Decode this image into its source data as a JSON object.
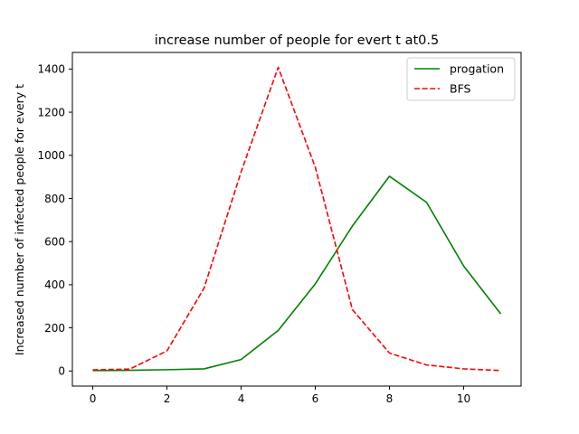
{
  "chart_data": {
    "type": "line",
    "title": "increase number of people for evert t  at0.5",
    "xlabel": "",
    "ylabel": "Increased number of infected people for every t",
    "xlim": [
      -0.55,
      11.55
    ],
    "ylim": [
      -70,
      1477
    ],
    "xticks": [
      0,
      2,
      4,
      6,
      8,
      10
    ],
    "yticks": [
      0,
      200,
      400,
      600,
      800,
      1000,
      1200,
      1400
    ],
    "grid": false,
    "legend_position": "top-right",
    "x": [
      0,
      1,
      2,
      3,
      4,
      5,
      6,
      7,
      8,
      9,
      10,
      11
    ],
    "series": [
      {
        "name": "progation",
        "color": "#008000",
        "style": "solid",
        "values": [
          2,
          3,
          6,
          10,
          53,
          188,
          404,
          672,
          903,
          782,
          487,
          265
        ]
      },
      {
        "name": "BFS",
        "color": "#ff0000",
        "style": "dashed",
        "values": [
          5,
          9,
          93,
          384,
          923,
          1408,
          945,
          285,
          83,
          28,
          10,
          2
        ]
      }
    ]
  }
}
